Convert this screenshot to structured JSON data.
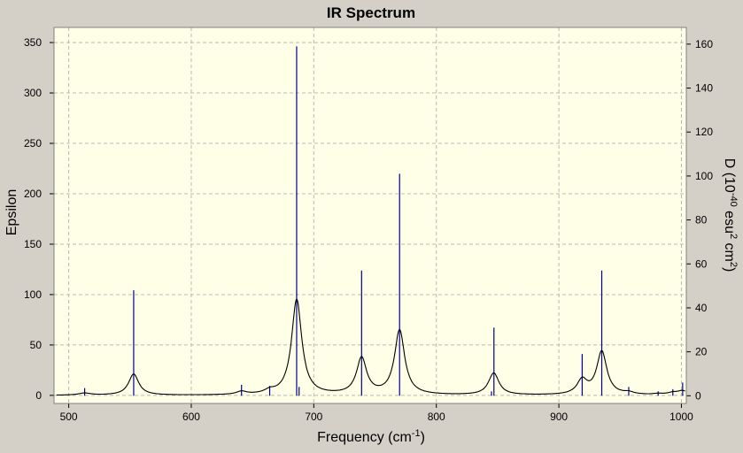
{
  "chart_data": {
    "type": "line",
    "title": "IR Spectrum",
    "xlabel": {
      "text": "Frequency (cm",
      "sup": "-1",
      "tail": ")"
    },
    "ylabel": "Epsilon",
    "y2label": {
      "p1": "D (10",
      "sup1": "-40",
      "p2": " esu",
      "sup2": "2",
      "p3": " cm",
      "sup3": "2",
      "p4": ")"
    },
    "xlim": [
      488,
      1004
    ],
    "ylim": [
      -8,
      365
    ],
    "y2lim": [
      -3.5,
      167.6
    ],
    "x_ticks": [
      500,
      600,
      700,
      800,
      900,
      1000
    ],
    "y_ticks": [
      0,
      50,
      100,
      150,
      200,
      250,
      300,
      350
    ],
    "y2_ticks": [
      0,
      20,
      40,
      60,
      80,
      100,
      120,
      140,
      160
    ],
    "grid": true,
    "series": [
      {
        "kind": "spectrum-curve",
        "color": "#000000",
        "peaks": [
          {
            "x": 513,
            "y": 2,
            "w": 6
          },
          {
            "x": 553,
            "y": 21,
            "w": 5
          },
          {
            "x": 641,
            "y": 3,
            "w": 5
          },
          {
            "x": 664,
            "y": 3,
            "w": 5
          },
          {
            "x": 686,
            "y": 93,
            "w": 5
          },
          {
            "x": 688,
            "y": 2,
            "w": 5
          },
          {
            "x": 739,
            "y": 36,
            "w": 5
          },
          {
            "x": 770,
            "y": 64,
            "w": 5
          },
          {
            "x": 845,
            "y": 2,
            "w": 5
          },
          {
            "x": 847,
            "y": 20,
            "w": 5
          },
          {
            "x": 919,
            "y": 14,
            "w": 5
          },
          {
            "x": 935,
            "y": 43,
            "w": 5
          },
          {
            "x": 957,
            "y": 2,
            "w": 5
          },
          {
            "x": 981,
            "y": 1,
            "w": 5
          },
          {
            "x": 993,
            "y": 2,
            "w": 5
          },
          {
            "x": 1001,
            "y": 4,
            "w": 5
          }
        ]
      },
      {
        "kind": "stick",
        "color": "#00008b",
        "axis": "right",
        "x": [
          513,
          553,
          641,
          664,
          686,
          688,
          739,
          770,
          845,
          847,
          919,
          935,
          957,
          981,
          993,
          1001
        ],
        "values": [
          3.5,
          48,
          5,
          4.5,
          159,
          4,
          57,
          101,
          2,
          31,
          19,
          57,
          4,
          2,
          3,
          6
        ]
      }
    ]
  }
}
